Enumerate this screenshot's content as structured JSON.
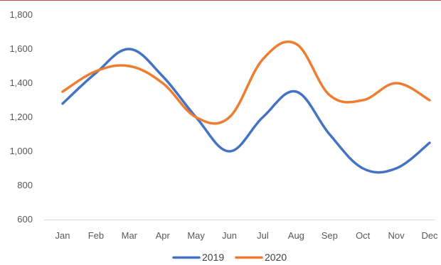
{
  "chart_data": {
    "type": "line",
    "title": "",
    "xlabel": "",
    "ylabel": "",
    "categories": [
      "Jan",
      "Feb",
      "Mar",
      "Apr",
      "May",
      "Jun",
      "Jul",
      "Aug",
      "Sep",
      "Oct",
      "Nov",
      "Dec"
    ],
    "y_ticks": [
      600,
      800,
      1000,
      1200,
      1400,
      1600,
      1800
    ],
    "y_tick_labels": [
      "600",
      "800",
      "1,000",
      "1,200",
      "1,400",
      "1,600",
      "1,800"
    ],
    "ylim": [
      600,
      1800
    ],
    "grid": false,
    "smooth": true,
    "legend_position": "bottom",
    "series": [
      {
        "name": "2019",
        "color": "#4472c4",
        "values": [
          1280,
          1460,
          1600,
          1440,
          1200,
          1000,
          1200,
          1350,
          1100,
          900,
          900,
          1050
        ]
      },
      {
        "name": "2020",
        "color": "#ed7d31",
        "values": [
          1350,
          1470,
          1500,
          1400,
          1200,
          1200,
          1540,
          1630,
          1330,
          1300,
          1400,
          1300
        ]
      }
    ]
  }
}
